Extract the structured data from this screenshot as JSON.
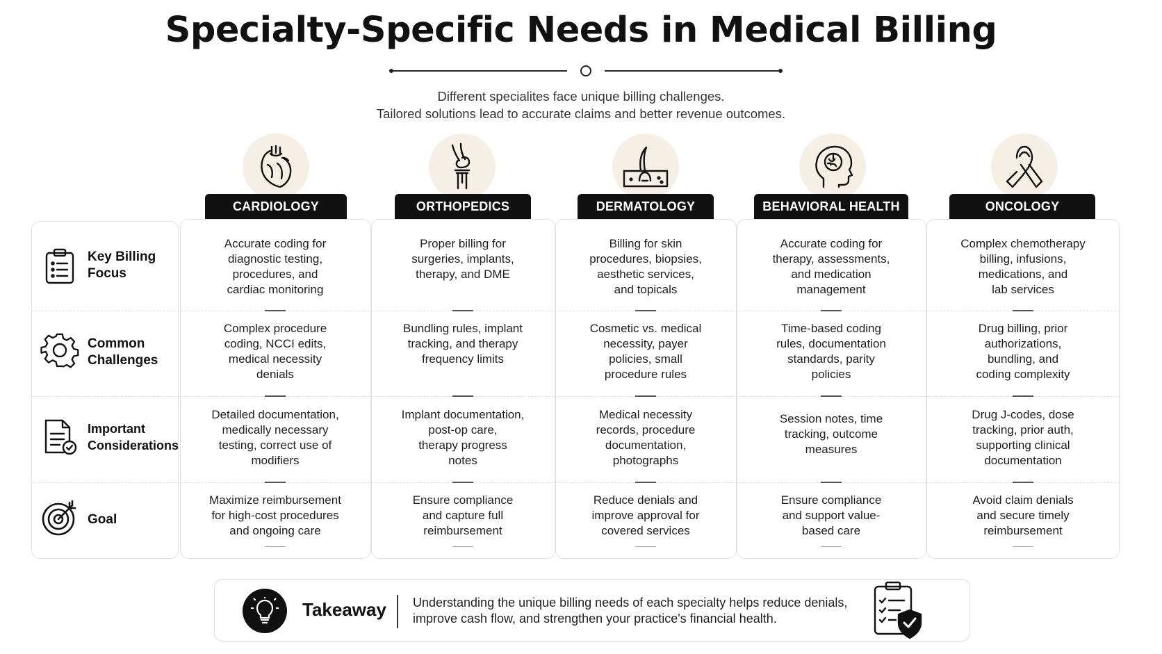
{
  "title": "Specialty-Specific Needs in Medical Billing",
  "subtitle": [
    "Different specialites face unique billing challenges.",
    "Tailored solutions lead to accurate claims and better revenue outcomes."
  ],
  "rows": [
    {
      "label": [
        "Key Billing",
        "Focus"
      ],
      "icon": "clipboard-list-icon"
    },
    {
      "label": [
        "Common",
        "Challenges"
      ],
      "icon": "gear-icon"
    },
    {
      "label": [
        "Important",
        "Considerations"
      ],
      "icon": "document-check-icon"
    },
    {
      "label": [
        "Goal"
      ],
      "icon": "target-arrow-icon"
    }
  ],
  "specialties": [
    {
      "name": "CARDIOLOGY",
      "icon": "heart-icon",
      "cells": [
        [
          "Accurate coding for",
          "diagnostic testing,",
          "procedures, and",
          "cardiac monitoring"
        ],
        [
          "Complex procedure",
          "coding, NCCI edits,",
          "medical necessity",
          "denials"
        ],
        [
          "Detailed documentation,",
          "medically necessary",
          "testing, correct use of",
          "modifiers"
        ],
        [
          "Maximize reimbursement",
          "for high-cost procedures",
          "and ongoing care"
        ]
      ]
    },
    {
      "name": "ORTHOPEDICS",
      "icon": "knee-joint-icon",
      "cells": [
        [
          "Proper billing for",
          "surgeries, implants,",
          "therapy, and DME"
        ],
        [
          "Bundling rules, implant",
          "tracking, and therapy",
          "frequency limits"
        ],
        [
          "Implant documentation,",
          "post-op care,",
          "therapy progress",
          "notes"
        ],
        [
          "Ensure compliance",
          "and capture full",
          "reimbursement"
        ]
      ]
    },
    {
      "name": "DERMATOLOGY",
      "icon": "skin-hair-follicle-icon",
      "cells": [
        [
          "Billing for skin",
          "procedures, biopsies,",
          "aesthetic services,",
          "and topicals"
        ],
        [
          "Cosmetic vs. medical",
          "necessity, payer",
          "policies, small",
          "procedure rules"
        ],
        [
          "Medical necessity",
          "records, procedure",
          "documentation,",
          "photographs"
        ],
        [
          "Reduce denials and",
          "improve approval for",
          "covered services"
        ]
      ]
    },
    {
      "name": "BEHAVIORAL HEALTH",
      "icon": "head-brain-icon",
      "cells": [
        [
          "Accurate coding for",
          "therapy, assessments,",
          "and medication",
          "management"
        ],
        [
          "Time-based coding",
          "rules, documentation",
          "standards, parity",
          "policies"
        ],
        [
          "Session notes, time",
          "tracking, outcome",
          "measures"
        ],
        [
          "Ensure compliance",
          "and support value-",
          "based care"
        ]
      ]
    },
    {
      "name": "ONCOLOGY",
      "icon": "awareness-ribbon-icon",
      "cells": [
        [
          "Complex chemotherapy",
          "billing, infusions,",
          "medications, and",
          "lab services"
        ],
        [
          "Drug billing, prior",
          "authorizations,",
          "bundling, and",
          "coding complexity"
        ],
        [
          "Drug J-codes, dose",
          "tracking, prior auth,",
          "supporting clinical",
          "documentation"
        ],
        [
          "Avoid claim denials",
          "and secure timely",
          "reimbursement"
        ]
      ]
    }
  ],
  "takeaway": {
    "label": "Takeaway",
    "text": [
      "Understanding the unique billing needs of each specialty helps reduce denials,",
      "improve cash flow, and strengthen your practice's financial health."
    ],
    "icon": "lightbulb-icon",
    "side_icon": "checklist-shield-icon"
  }
}
